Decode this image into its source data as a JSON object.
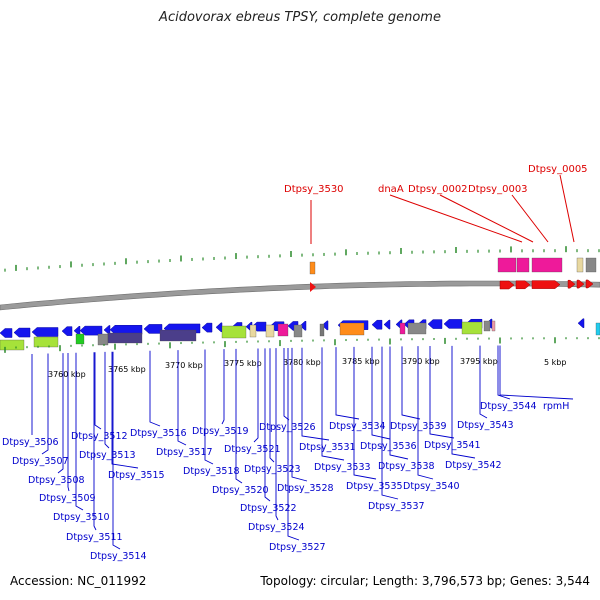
{
  "title": "Acidovorax ebreus TPSY, complete genome",
  "footer": {
    "accession": "Accession: NC_011992",
    "summary": "Topology: circular; Length: 3,796,573 bp; Genes: 3,544"
  },
  "colors": {
    "forward_gene_label": "#dd0000",
    "reverse_gene_label": "#0000cc",
    "reverse_arrow": "#1515ee",
    "forward_arrow": "#ee1111",
    "backbone": "#9a9a9a",
    "tick": "#2a8a2a"
  },
  "scale_labels": [
    "3760 kbp",
    "3765 kbp",
    "3770 kbp",
    "3775 kbp",
    "3780 kbp",
    "3785 kbp",
    "3790 kbp",
    "3795 kbp",
    "5 kbp"
  ],
  "top_labels": [
    "Dtpsy_3530",
    "dnaA",
    "Dtpsy_0002",
    "Dtpsy_0003",
    "Dtpsy_0005"
  ],
  "bottom_labels": [
    "Dtpsy_3506",
    "Dtpsy_3507",
    "Dtpsy_3508",
    "Dtpsy_3509",
    "Dtpsy_3510",
    "Dtpsy_3511",
    "Dtpsy_3512",
    "Dtpsy_3513",
    "Dtpsy_3514",
    "Dtpsy_3515",
    "Dtpsy_3516",
    "Dtpsy_3517",
    "Dtpsy_3518",
    "Dtpsy_3519",
    "Dtpsy_3520",
    "Dtpsy_3521",
    "Dtpsy_3522",
    "Dtpsy_3523",
    "Dtpsy_3524",
    "Dtpsy_3526",
    "Dtpsy_3527",
    "Dtpsy_3528",
    "Dtpsy_3531",
    "Dtpsy_3533",
    "Dtpsy_3534",
    "Dtpsy_3535",
    "Dtpsy_3536",
    "Dtpsy_3537",
    "Dtpsy_3538",
    "Dtpsy_3539",
    "Dtpsy_3540",
    "Dtpsy_3541",
    "Dtpsy_3542",
    "Dtpsy_3543",
    "Dtpsy_3544",
    "rpmH"
  ]
}
